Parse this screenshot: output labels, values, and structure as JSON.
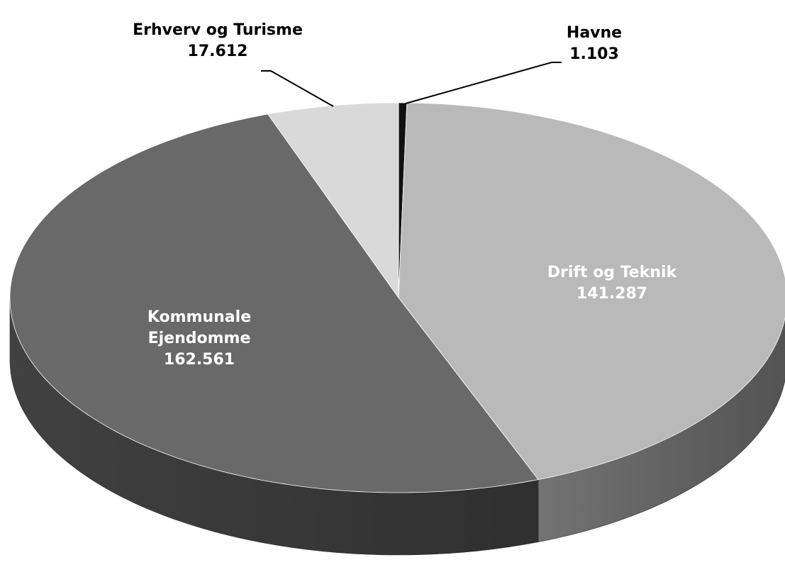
{
  "chart_data": {
    "type": "pie3d",
    "categories": [
      "Havne",
      "Drift og Teknik",
      "Kommunale Ejendomme",
      "Erhverv og Turisme"
    ],
    "values": [
      1103,
      141287,
      162561,
      17612
    ],
    "value_labels": [
      "1.103",
      "141.287",
      "162.561",
      "17.612"
    ],
    "colors": [
      "#111111",
      "#b9b9b9",
      "#696969",
      "#d9d9d9"
    ]
  }
}
